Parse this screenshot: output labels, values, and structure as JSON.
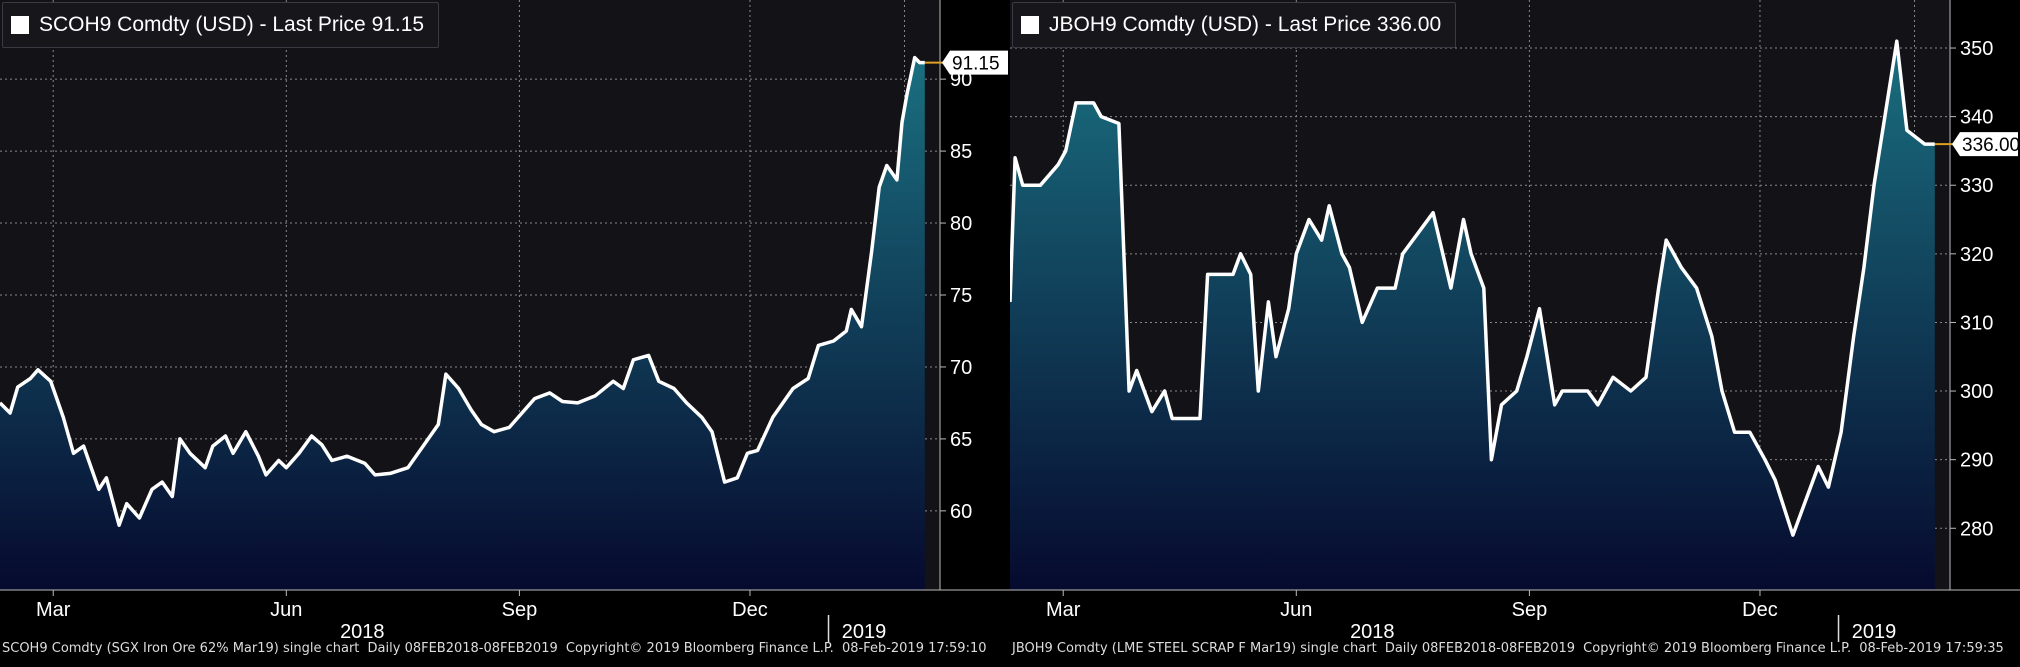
{
  "chart_data": [
    {
      "type": "area",
      "title": "SCOH9 Comdty (USD) - Last Price 91.15",
      "series": [
        {
          "name": "SCOH9 Comdty (USD) - Last Price 91.15"
        }
      ],
      "last_price_label": "91.15",
      "last_price": 91.15,
      "ylim": [
        54.5,
        95.5
      ],
      "yticks": [
        "60",
        "65",
        "70",
        "75",
        "80",
        "85",
        "90"
      ],
      "xlim": [
        "2018-02-08",
        "2019-02-14"
      ],
      "month_labels": [
        {
          "label": "Mar",
          "date": "2018-03-01"
        },
        {
          "label": "Jun",
          "date": "2018-06-01"
        },
        {
          "label": "Sep",
          "date": "2018-09-01"
        },
        {
          "label": "Dec",
          "date": "2018-12-01"
        }
      ],
      "year_labels": [
        {
          "label": "2018",
          "date": "2018-07-01"
        },
        {
          "label": "2019",
          "date": "2019-01-15"
        }
      ],
      "grid": true,
      "colors": {
        "line": "#ffffff",
        "fill_top": "#1a6f80",
        "fill_bottom": "#060a2e",
        "background": "#121217",
        "last_price_line": "#e0a020"
      },
      "data": [
        [
          "2018-02-08",
          67.5
        ],
        [
          "2018-02-12",
          66.8
        ],
        [
          "2018-02-15",
          68.6
        ],
        [
          "2018-02-20",
          69.2
        ],
        [
          "2018-02-23",
          69.8
        ],
        [
          "2018-02-28",
          69.0
        ],
        [
          "2018-03-05",
          66.5
        ],
        [
          "2018-03-09",
          64.0
        ],
        [
          "2018-03-13",
          64.5
        ],
        [
          "2018-03-19",
          61.5
        ],
        [
          "2018-03-22",
          62.3
        ],
        [
          "2018-03-27",
          59.0
        ],
        [
          "2018-03-30",
          60.5
        ],
        [
          "2018-04-04",
          59.5
        ],
        [
          "2018-04-09",
          61.5
        ],
        [
          "2018-04-13",
          62.0
        ],
        [
          "2018-04-17",
          61.0
        ],
        [
          "2018-04-20",
          65.0
        ],
        [
          "2018-04-24",
          64.0
        ],
        [
          "2018-04-30",
          63.0
        ],
        [
          "2018-05-03",
          64.5
        ],
        [
          "2018-05-08",
          65.2
        ],
        [
          "2018-05-11",
          64.0
        ],
        [
          "2018-05-16",
          65.5
        ],
        [
          "2018-05-21",
          63.8
        ],
        [
          "2018-05-24",
          62.5
        ],
        [
          "2018-05-29",
          63.5
        ],
        [
          "2018-06-01",
          63.0
        ],
        [
          "2018-06-06",
          64.0
        ],
        [
          "2018-06-11",
          65.2
        ],
        [
          "2018-06-15",
          64.6
        ],
        [
          "2018-06-19",
          63.5
        ],
        [
          "2018-06-25",
          63.8
        ],
        [
          "2018-07-02",
          63.3
        ],
        [
          "2018-07-06",
          62.5
        ],
        [
          "2018-07-12",
          62.6
        ],
        [
          "2018-07-19",
          63.0
        ],
        [
          "2018-07-25",
          64.5
        ],
        [
          "2018-07-31",
          66.0
        ],
        [
          "2018-08-03",
          69.5
        ],
        [
          "2018-08-08",
          68.5
        ],
        [
          "2018-08-13",
          67.0
        ],
        [
          "2018-08-17",
          66.0
        ],
        [
          "2018-08-22",
          65.5
        ],
        [
          "2018-08-28",
          65.8
        ],
        [
          "2018-09-03",
          67.0
        ],
        [
          "2018-09-07",
          67.8
        ],
        [
          "2018-09-13",
          68.2
        ],
        [
          "2018-09-18",
          67.6
        ],
        [
          "2018-09-24",
          67.5
        ],
        [
          "2018-10-01",
          68.0
        ],
        [
          "2018-10-08",
          69.0
        ],
        [
          "2018-10-12",
          68.5
        ],
        [
          "2018-10-16",
          70.5
        ],
        [
          "2018-10-22",
          70.8
        ],
        [
          "2018-10-26",
          69.0
        ],
        [
          "2018-11-01",
          68.5
        ],
        [
          "2018-11-06",
          67.5
        ],
        [
          "2018-11-12",
          66.5
        ],
        [
          "2018-11-16",
          65.5
        ],
        [
          "2018-11-21",
          62.0
        ],
        [
          "2018-11-26",
          62.3
        ],
        [
          "2018-11-30",
          64.0
        ],
        [
          "2018-12-04",
          64.2
        ],
        [
          "2018-12-10",
          66.5
        ],
        [
          "2018-12-14",
          67.5
        ],
        [
          "2018-12-18",
          68.5
        ],
        [
          "2018-12-24",
          69.2
        ],
        [
          "2018-12-28",
          71.5
        ],
        [
          "2019-01-03",
          71.8
        ],
        [
          "2019-01-08",
          72.5
        ],
        [
          "2019-01-10",
          74.0
        ],
        [
          "2019-01-14",
          72.8
        ],
        [
          "2019-01-18",
          78.0
        ],
        [
          "2019-01-21",
          82.5
        ],
        [
          "2019-01-24",
          84.0
        ],
        [
          "2019-01-28",
          83.0
        ],
        [
          "2019-01-30",
          87.0
        ],
        [
          "2019-02-01",
          89.0
        ],
        [
          "2019-02-04",
          91.5
        ],
        [
          "2019-02-06",
          91.15
        ],
        [
          "2019-02-08",
          91.15
        ]
      ]
    },
    {
      "type": "area",
      "title": "JBOH9 Comdty (USD) - Last Price 336.00",
      "series": [
        {
          "name": "JBOH9 Comdty (USD) - Last Price 336.00"
        }
      ],
      "last_price_label": "336.00",
      "last_price": 336.0,
      "ylim": [
        271.0,
        357.0
      ],
      "yticks": [
        "280",
        "290",
        "300",
        "310",
        "320",
        "330",
        "340",
        "350"
      ],
      "xlim": [
        "2018-02-08",
        "2019-02-14"
      ],
      "month_labels": [
        {
          "label": "Mar",
          "date": "2018-03-01"
        },
        {
          "label": "Jun",
          "date": "2018-06-01"
        },
        {
          "label": "Sep",
          "date": "2018-09-01"
        },
        {
          "label": "Dec",
          "date": "2018-12-01"
        }
      ],
      "year_labels": [
        {
          "label": "2018",
          "date": "2018-07-01"
        },
        {
          "label": "2019",
          "date": "2019-01-15"
        }
      ],
      "grid": true,
      "colors": {
        "line": "#ffffff",
        "fill_top": "#1a6f80",
        "fill_bottom": "#060a2e",
        "background": "#121217",
        "last_price_line": "#e0a020"
      },
      "data": [
        [
          "2018-02-08",
          313.0
        ],
        [
          "2018-02-10",
          334.0
        ],
        [
          "2018-02-13",
          330.0
        ],
        [
          "2018-02-20",
          330.0
        ],
        [
          "2018-02-27",
          333.0
        ],
        [
          "2018-03-02",
          335.0
        ],
        [
          "2018-03-06",
          342.0
        ],
        [
          "2018-03-13",
          342.0
        ],
        [
          "2018-03-16",
          340.0
        ],
        [
          "2018-03-23",
          339.0
        ],
        [
          "2018-03-27",
          300.0
        ],
        [
          "2018-03-30",
          303.0
        ],
        [
          "2018-04-05",
          297.0
        ],
        [
          "2018-04-10",
          300.0
        ],
        [
          "2018-04-13",
          296.0
        ],
        [
          "2018-04-24",
          296.0
        ],
        [
          "2018-04-27",
          317.0
        ],
        [
          "2018-05-07",
          317.0
        ],
        [
          "2018-05-10",
          320.0
        ],
        [
          "2018-05-14",
          317.0
        ],
        [
          "2018-05-17",
          300.0
        ],
        [
          "2018-05-21",
          313.0
        ],
        [
          "2018-05-24",
          305.0
        ],
        [
          "2018-05-29",
          312.0
        ],
        [
          "2018-06-01",
          320.0
        ],
        [
          "2018-06-06",
          325.0
        ],
        [
          "2018-06-11",
          322.0
        ],
        [
          "2018-06-14",
          327.0
        ],
        [
          "2018-06-19",
          320.0
        ],
        [
          "2018-06-22",
          318.0
        ],
        [
          "2018-06-27",
          310.0
        ],
        [
          "2018-07-03",
          315.0
        ],
        [
          "2018-07-10",
          315.0
        ],
        [
          "2018-07-13",
          320.0
        ],
        [
          "2018-07-19",
          323.0
        ],
        [
          "2018-07-25",
          326.0
        ],
        [
          "2018-08-01",
          315.0
        ],
        [
          "2018-08-06",
          325.0
        ],
        [
          "2018-08-09",
          320.0
        ],
        [
          "2018-08-14",
          315.0
        ],
        [
          "2018-08-17",
          290.0
        ],
        [
          "2018-08-21",
          298.0
        ],
        [
          "2018-08-27",
          300.0
        ],
        [
          "2018-08-31",
          305.0
        ],
        [
          "2018-09-05",
          312.0
        ],
        [
          "2018-09-08",
          305.0
        ],
        [
          "2018-09-11",
          298.0
        ],
        [
          "2018-09-14",
          300.0
        ],
        [
          "2018-09-24",
          300.0
        ],
        [
          "2018-09-28",
          298.0
        ],
        [
          "2018-10-04",
          302.0
        ],
        [
          "2018-10-11",
          300.0
        ],
        [
          "2018-10-17",
          302.0
        ],
        [
          "2018-10-22",
          315.0
        ],
        [
          "2018-10-25",
          322.0
        ],
        [
          "2018-10-31",
          318.0
        ],
        [
          "2018-11-06",
          315.0
        ],
        [
          "2018-11-12",
          308.0
        ],
        [
          "2018-11-16",
          300.0
        ],
        [
          "2018-11-21",
          294.0
        ],
        [
          "2018-11-27",
          294.0
        ],
        [
          "2018-12-03",
          290.0
        ],
        [
          "2018-12-07",
          287.0
        ],
        [
          "2018-12-14",
          279.0
        ],
        [
          "2018-12-18",
          283.0
        ],
        [
          "2018-12-24",
          289.0
        ],
        [
          "2018-12-28",
          286.0
        ],
        [
          "2019-01-02",
          294.0
        ],
        [
          "2019-01-07",
          308.0
        ],
        [
          "2019-01-11",
          318.0
        ],
        [
          "2019-01-15",
          330.0
        ],
        [
          "2019-01-21",
          344.0
        ],
        [
          "2019-01-24",
          351.0
        ],
        [
          "2019-01-28",
          338.0
        ],
        [
          "2019-02-04",
          336.0
        ],
        [
          "2019-02-08",
          336.0
        ]
      ]
    }
  ],
  "footers": [
    {
      "description": "SCOH9 Comdty (SGX Iron Ore 62% Mar19) single chart",
      "daily": "Daily 08FEB2018-08FEB2019",
      "copyright": "Copyright© 2019 Bloomberg Finance L.P.",
      "timestamp": "08-Feb-2019 17:59:10"
    },
    {
      "description": "JBOH9 Comdty (LME STEEL SCRAP F Mar19) single chart",
      "daily": "Daily 08FEB2018-08FEB2019",
      "copyright": "Copyright© 2019 Bloomberg Finance L.P.",
      "timestamp": "08-Feb-2019 17:59:35"
    }
  ]
}
